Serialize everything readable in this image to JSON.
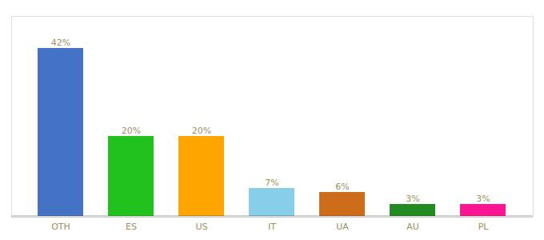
{
  "chart_data": {
    "type": "bar",
    "categories": [
      "OTH",
      "ES",
      "US",
      "IT",
      "UA",
      "AU",
      "PL"
    ],
    "values": [
      42,
      20,
      20,
      7,
      6,
      3,
      3
    ],
    "value_labels": [
      "42%",
      "20%",
      "20%",
      "7%",
      "6%",
      "3%",
      "3%"
    ],
    "colors": [
      "#4472C4",
      "#21C21E",
      "#FFA500",
      "#87CEEB",
      "#CD6C1A",
      "#228B22",
      "#FF1493"
    ],
    "ylim": [
      0,
      50
    ],
    "data_labels": true,
    "tick_labels": "x",
    "grid": false
  }
}
